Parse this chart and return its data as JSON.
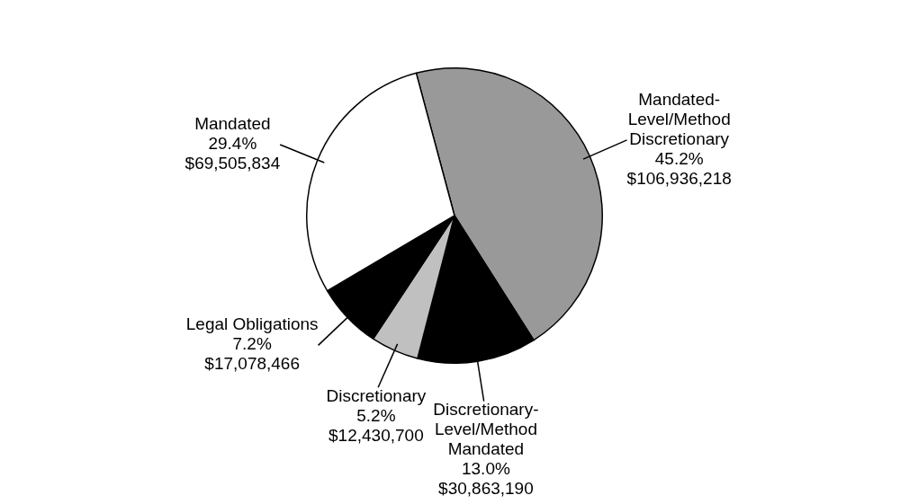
{
  "chart_data": {
    "type": "pie",
    "categories": [
      "Mandated-Level/Method Discretionary",
      "Discretionary-Level/Method Mandated",
      "Discretionary",
      "Legal Obligations",
      "Mandated"
    ],
    "values": [
      106936218,
      30863190,
      12430700,
      17078466,
      69505834
    ],
    "colors": [
      "#999999",
      "#000000",
      "#c0c0c0",
      "#000000",
      "#ffffff"
    ],
    "value_labels": [
      "45.2%\n$106,936,218",
      "13.0%\n$30,863,190",
      "5.2%\n$12,430,700",
      "7.2%\n$17,078,466",
      "29.4%\n$69,505,834"
    ],
    "legend": false
  }
}
